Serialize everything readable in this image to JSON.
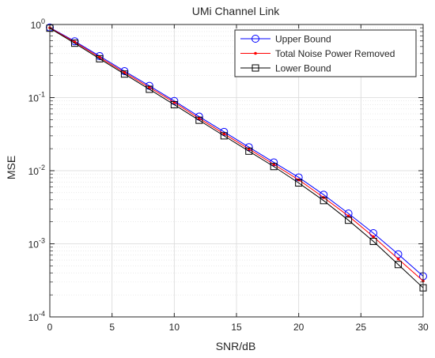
{
  "chart_data": {
    "type": "line",
    "title": "UMi Channel Link",
    "xlabel": "SNR/dB",
    "ylabel": "MSE",
    "xlim": [
      0,
      30
    ],
    "ylim": [
      0.0001,
      1
    ],
    "yscale": "log",
    "grid": true,
    "minor_grid": true,
    "legend_position": "top-right",
    "x_ticks": [
      0,
      5,
      10,
      15,
      20,
      25,
      30
    ],
    "x_tick_labels": [
      "0",
      "5",
      "10",
      "15",
      "20",
      "25",
      "30"
    ],
    "y_ticks": [
      1,
      0.1,
      0.01,
      0.001,
      0.0001
    ],
    "y_tick_labels": [
      {
        "base": "10",
        "exp": "0"
      },
      {
        "base": "10",
        "exp": "-1"
      },
      {
        "base": "10",
        "exp": "-2"
      },
      {
        "base": "10",
        "exp": "-3"
      },
      {
        "base": "10",
        "exp": "-4"
      }
    ],
    "x": [
      0,
      2,
      4,
      6,
      8,
      10,
      12,
      14,
      16,
      18,
      20,
      22,
      24,
      26,
      28,
      30
    ],
    "series": [
      {
        "name": "Upper Bound",
        "color": "#0000ff",
        "marker": "circle",
        "values": [
          0.91,
          0.59,
          0.37,
          0.23,
          0.145,
          0.09,
          0.055,
          0.034,
          0.021,
          0.013,
          0.0081,
          0.0047,
          0.0026,
          0.0014,
          0.00072,
          0.00036
        ]
      },
      {
        "name": "Total Noise Power Removed",
        "color": "#ff0000",
        "marker": "dot",
        "values": [
          0.9,
          0.575,
          0.355,
          0.22,
          0.138,
          0.086,
          0.052,
          0.032,
          0.0198,
          0.0122,
          0.0075,
          0.0043,
          0.0024,
          0.00125,
          0.00062,
          0.00031
        ]
      },
      {
        "name": "Lower Bound",
        "color": "#000000",
        "marker": "square",
        "values": [
          0.89,
          0.555,
          0.34,
          0.21,
          0.13,
          0.08,
          0.049,
          0.03,
          0.0185,
          0.0114,
          0.0068,
          0.0039,
          0.0021,
          0.00108,
          0.00052,
          0.00025
        ]
      }
    ]
  }
}
